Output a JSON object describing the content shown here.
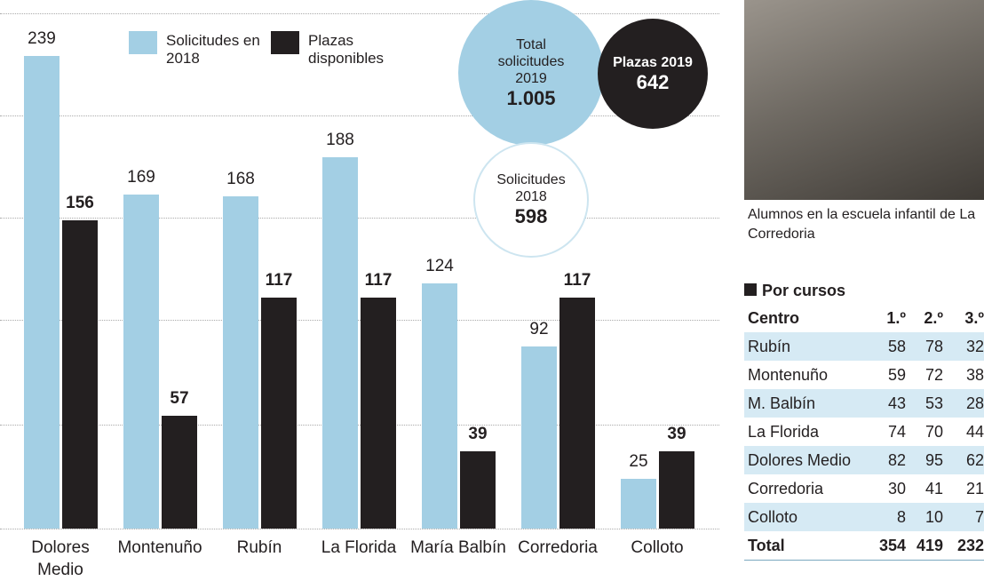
{
  "chart_data": {
    "type": "bar",
    "categories": [
      "Dolores Medio",
      "Montenuño",
      "Rubín",
      "La Florida",
      "María Balbín",
      "Corredoria",
      "Colloto"
    ],
    "series": [
      {
        "name": "Solicitudes en 2018",
        "color": "#a3cfe4",
        "values": [
          239,
          169,
          168,
          188,
          124,
          92,
          25
        ]
      },
      {
        "name": "Plazas disponibles",
        "color": "#231f20",
        "values": [
          156,
          57,
          117,
          117,
          39,
          117,
          39
        ]
      }
    ],
    "annotations": [
      {
        "label": "Total solicitudes 2019",
        "value": "1.005"
      },
      {
        "label": "Plazas 2019",
        "value": "642"
      },
      {
        "label": "Solicitudes 2018",
        "value": "598"
      }
    ]
  },
  "photo": {
    "caption": "Alumnos en la escuela infantil de La Corredoria"
  },
  "table": {
    "title": "Por cursos",
    "header": [
      "Centro",
      "1.º",
      "2.º",
      "3.º"
    ],
    "rows": [
      [
        "Rubín",
        58,
        78,
        32
      ],
      [
        "Montenuño",
        59,
        72,
        38
      ],
      [
        "M. Balbín",
        43,
        53,
        28
      ],
      [
        "La Florida",
        74,
        70,
        44
      ],
      [
        "Dolores Medio",
        82,
        95,
        62
      ],
      [
        "Corredoria",
        30,
        41,
        21
      ],
      [
        "Colloto",
        8,
        10,
        7
      ]
    ],
    "total": [
      "Total",
      354,
      419,
      232
    ]
  }
}
